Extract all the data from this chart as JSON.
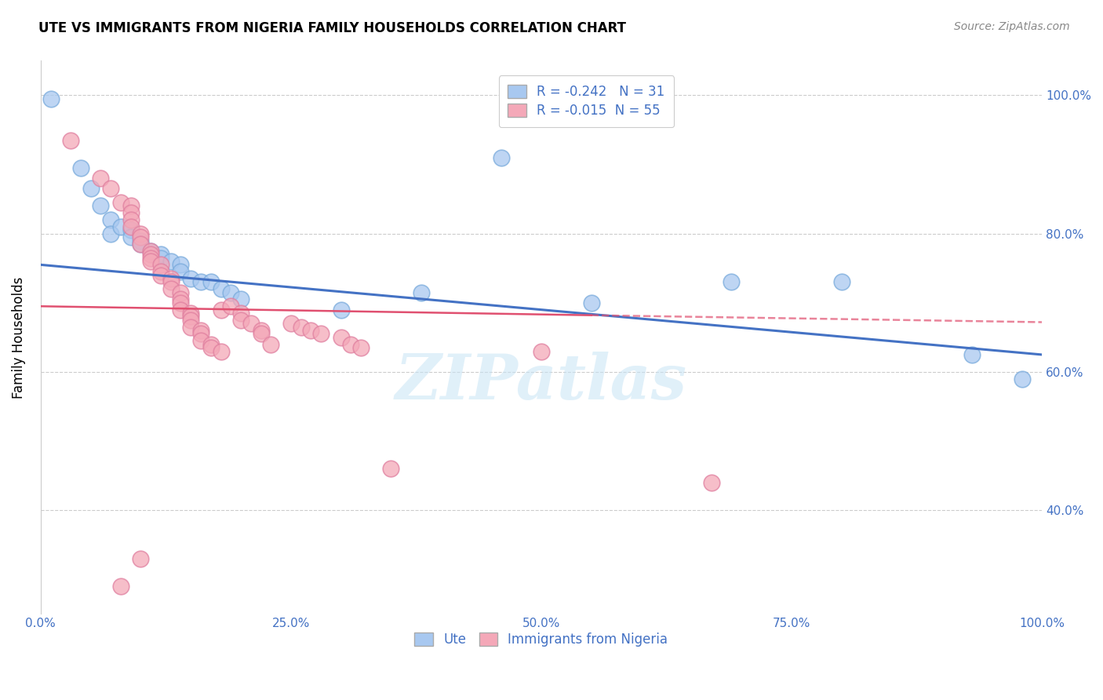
{
  "title": "UTE VS IMMIGRANTS FROM NIGERIA FAMILY HOUSEHOLDS CORRELATION CHART",
  "source": "Source: ZipAtlas.com",
  "ylabel": "Family Households",
  "legend_ute": "Ute",
  "legend_nigeria": "Immigrants from Nigeria",
  "R_ute": -0.242,
  "N_ute": 31,
  "R_nigeria": -0.015,
  "N_nigeria": 55,
  "watermark": "ZIPatlas",
  "ute_color": "#a8c8f0",
  "nigeria_color": "#f4a8b8",
  "ute_line_color": "#4472c4",
  "nigeria_line_color": "#e05070",
  "axis_color": "#4472c4",
  "grid_color": "#cccccc",
  "ute_scatter": [
    [
      0.01,
      0.995
    ],
    [
      0.04,
      0.895
    ],
    [
      0.05,
      0.865
    ],
    [
      0.06,
      0.84
    ],
    [
      0.07,
      0.82
    ],
    [
      0.07,
      0.8
    ],
    [
      0.08,
      0.81
    ],
    [
      0.09,
      0.805
    ],
    [
      0.09,
      0.795
    ],
    [
      0.1,
      0.79
    ],
    [
      0.1,
      0.785
    ],
    [
      0.11,
      0.775
    ],
    [
      0.12,
      0.77
    ],
    [
      0.12,
      0.765
    ],
    [
      0.13,
      0.76
    ],
    [
      0.14,
      0.755
    ],
    [
      0.14,
      0.745
    ],
    [
      0.15,
      0.735
    ],
    [
      0.16,
      0.73
    ],
    [
      0.17,
      0.73
    ],
    [
      0.18,
      0.72
    ],
    [
      0.19,
      0.715
    ],
    [
      0.2,
      0.705
    ],
    [
      0.3,
      0.69
    ],
    [
      0.38,
      0.715
    ],
    [
      0.46,
      0.91
    ],
    [
      0.55,
      0.7
    ],
    [
      0.69,
      0.73
    ],
    [
      0.8,
      0.73
    ],
    [
      0.93,
      0.625
    ],
    [
      0.98,
      0.59
    ]
  ],
  "nigeria_scatter": [
    [
      0.03,
      0.935
    ],
    [
      0.06,
      0.88
    ],
    [
      0.07,
      0.865
    ],
    [
      0.08,
      0.845
    ],
    [
      0.09,
      0.84
    ],
    [
      0.09,
      0.83
    ],
    [
      0.09,
      0.82
    ],
    [
      0.09,
      0.81
    ],
    [
      0.1,
      0.8
    ],
    [
      0.1,
      0.795
    ],
    [
      0.1,
      0.785
    ],
    [
      0.11,
      0.775
    ],
    [
      0.11,
      0.77
    ],
    [
      0.11,
      0.765
    ],
    [
      0.11,
      0.76
    ],
    [
      0.12,
      0.755
    ],
    [
      0.12,
      0.745
    ],
    [
      0.12,
      0.74
    ],
    [
      0.13,
      0.735
    ],
    [
      0.13,
      0.73
    ],
    [
      0.13,
      0.72
    ],
    [
      0.14,
      0.715
    ],
    [
      0.14,
      0.705
    ],
    [
      0.14,
      0.7
    ],
    [
      0.14,
      0.69
    ],
    [
      0.15,
      0.685
    ],
    [
      0.15,
      0.68
    ],
    [
      0.15,
      0.675
    ],
    [
      0.15,
      0.665
    ],
    [
      0.16,
      0.66
    ],
    [
      0.16,
      0.655
    ],
    [
      0.16,
      0.645
    ],
    [
      0.17,
      0.64
    ],
    [
      0.17,
      0.635
    ],
    [
      0.18,
      0.63
    ],
    [
      0.18,
      0.69
    ],
    [
      0.19,
      0.695
    ],
    [
      0.2,
      0.685
    ],
    [
      0.2,
      0.675
    ],
    [
      0.21,
      0.67
    ],
    [
      0.22,
      0.66
    ],
    [
      0.22,
      0.655
    ],
    [
      0.23,
      0.64
    ],
    [
      0.25,
      0.67
    ],
    [
      0.26,
      0.665
    ],
    [
      0.27,
      0.66
    ],
    [
      0.28,
      0.655
    ],
    [
      0.3,
      0.65
    ],
    [
      0.31,
      0.64
    ],
    [
      0.32,
      0.635
    ],
    [
      0.35,
      0.46
    ],
    [
      0.5,
      0.63
    ],
    [
      0.67,
      0.44
    ],
    [
      0.1,
      0.33
    ],
    [
      0.08,
      0.29
    ]
  ],
  "xlim": [
    0,
    1.0
  ],
  "ylim": [
    0.25,
    1.05
  ],
  "yticks": [
    0.4,
    0.6,
    0.8,
    1.0
  ],
  "ytick_labels": [
    "40.0%",
    "60.0%",
    "80.0%",
    "100.0%"
  ],
  "xticks": [
    0.0,
    0.25,
    0.5,
    0.75,
    1.0
  ],
  "xtick_labels": [
    "0.0%",
    "25.0%",
    "50.0%",
    "75.0%",
    "100.0%"
  ]
}
